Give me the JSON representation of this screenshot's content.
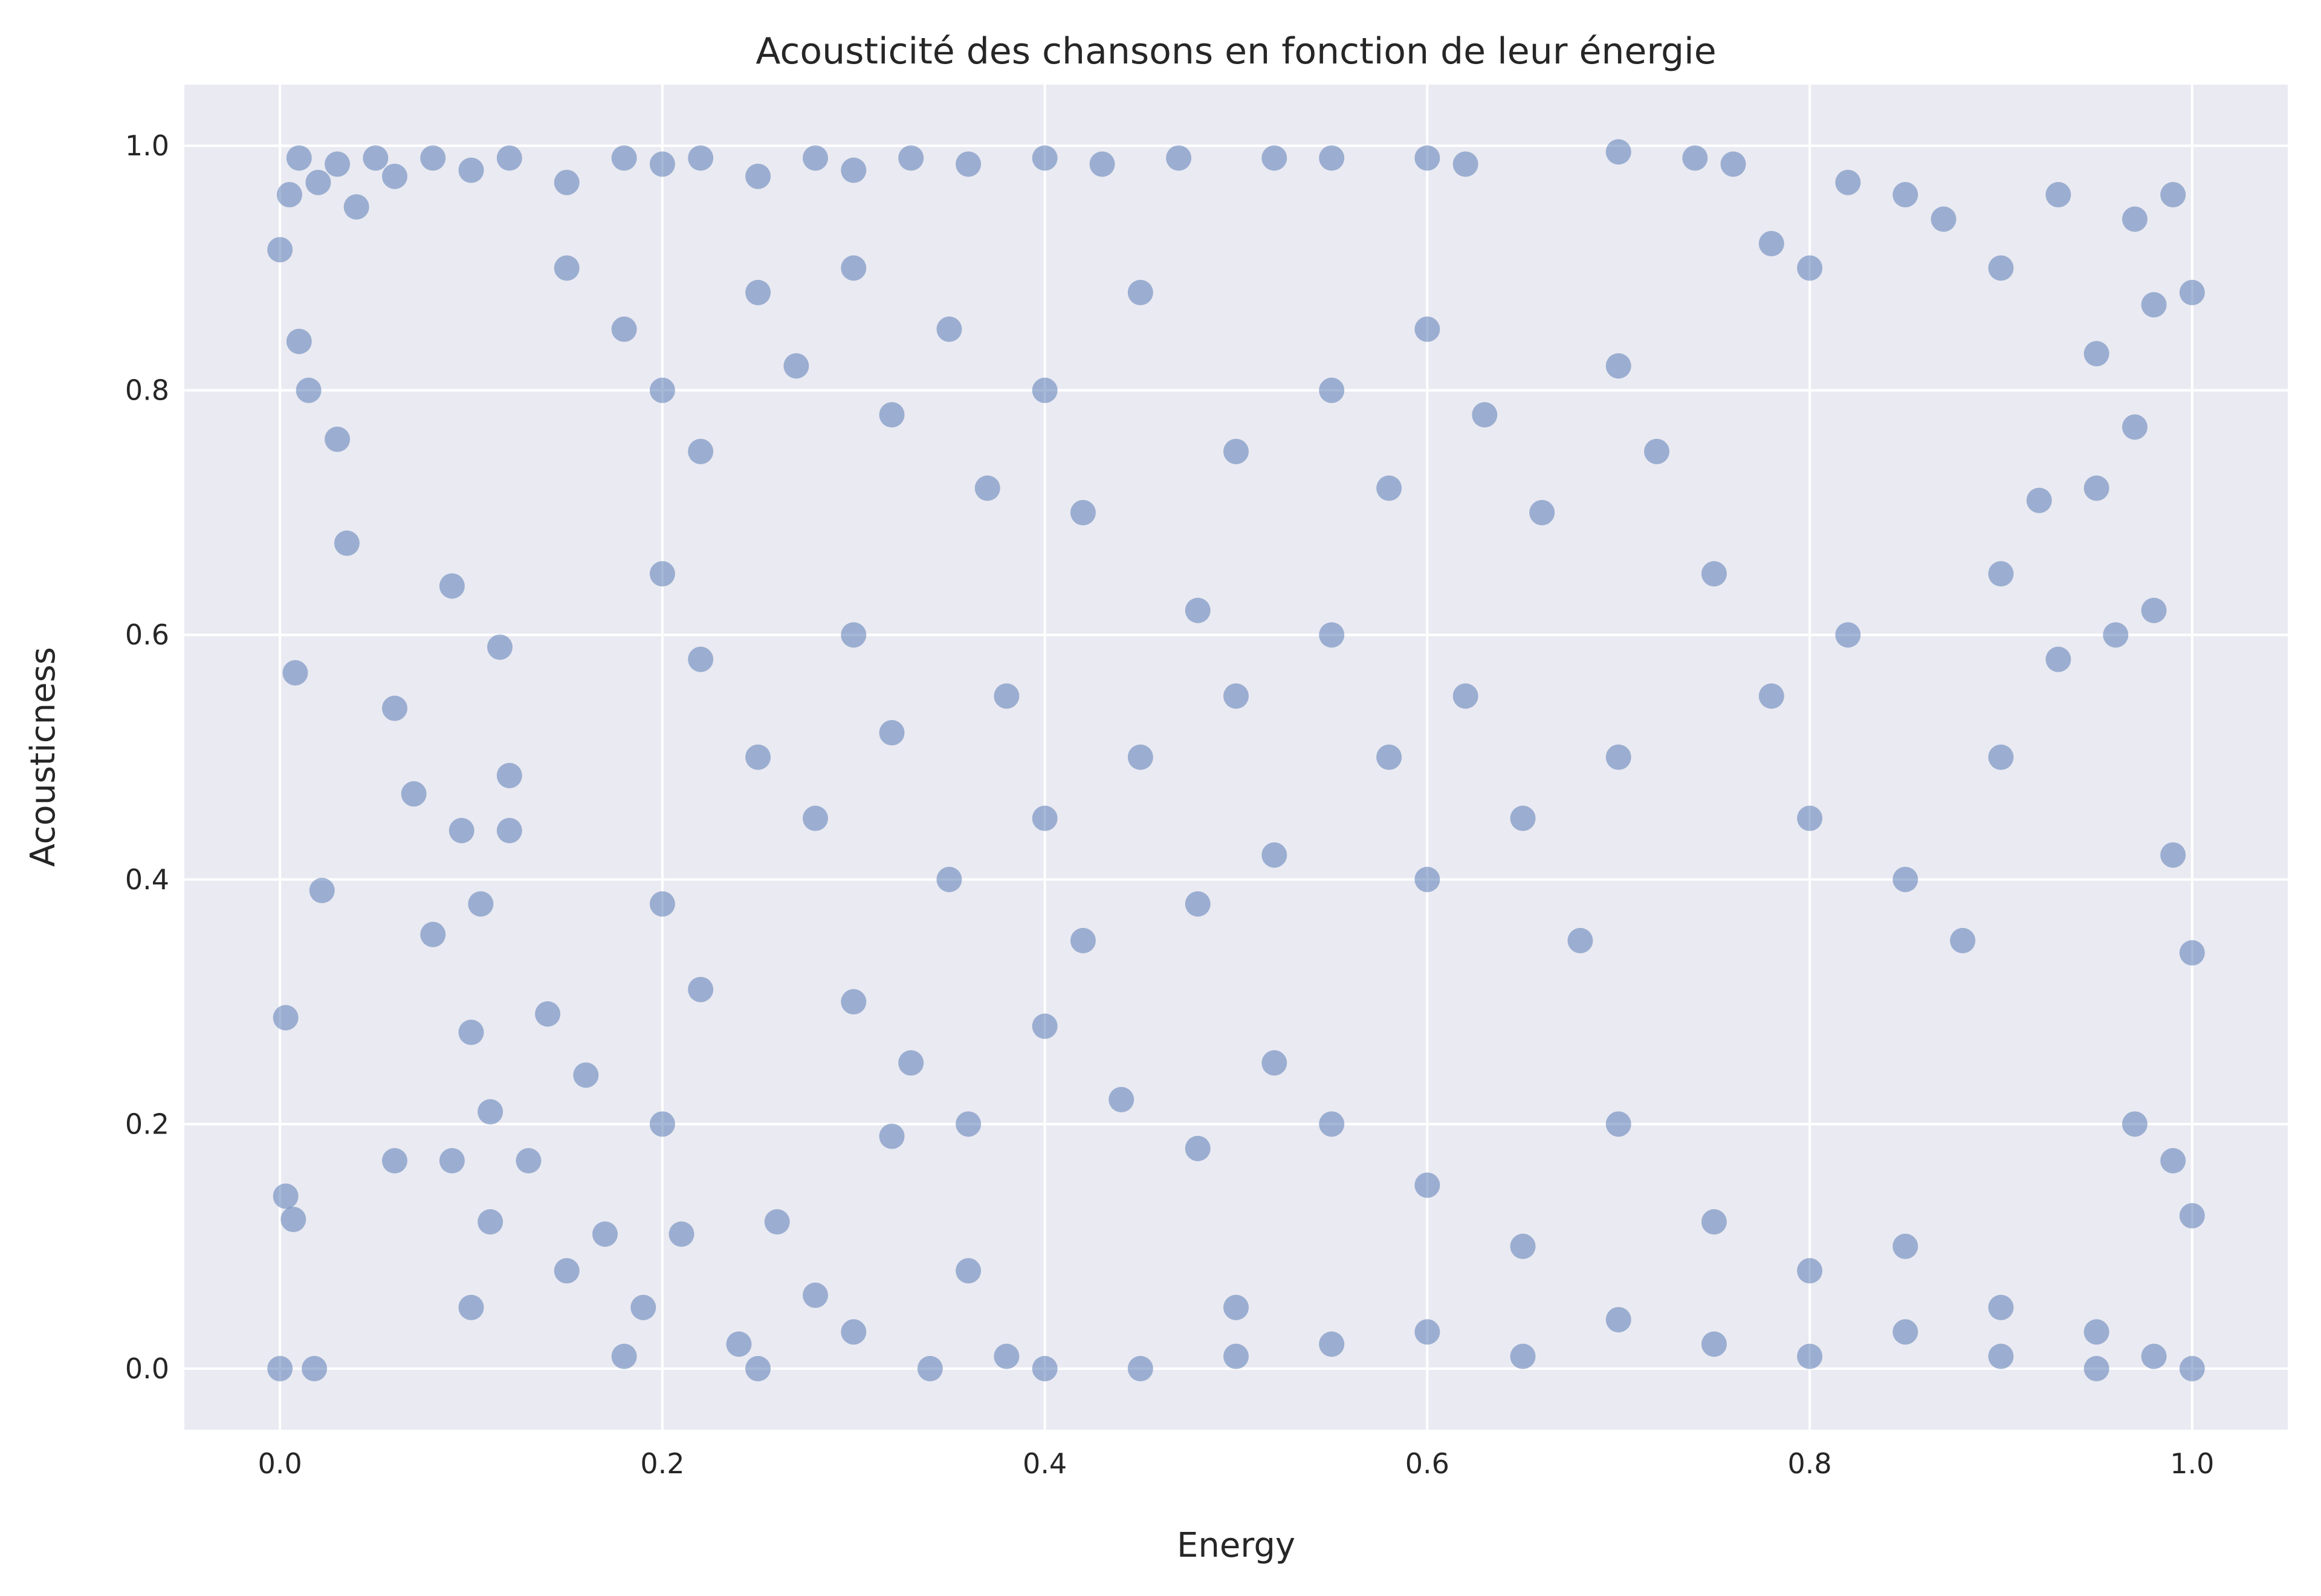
{
  "chart_data": {
    "type": "scatter",
    "title": "Acousticité des chansons en fonction de leur énergie",
    "xlabel": "Energy",
    "ylabel": "Acousticness",
    "xlim": [
      -0.05,
      1.05
    ],
    "ylim": [
      -0.05,
      1.05
    ],
    "xticks": [
      0.0,
      0.2,
      0.4,
      0.6,
      0.8,
      1.0
    ],
    "xtick_labels": [
      "0.0",
      "0.2",
      "0.4",
      "0.6",
      "0.8",
      "1.0"
    ],
    "yticks": [
      0.0,
      0.2,
      0.4,
      0.6,
      0.8,
      1.0
    ],
    "ytick_labels": [
      "0.0",
      "0.2",
      "0.4",
      "0.6",
      "0.8",
      "1.0"
    ],
    "grid": true,
    "background_color": "#eaeaf2",
    "point_color": "#4c72b0",
    "point_opacity": 0.5,
    "series": [
      {
        "points": [
          [
            0.0,
            0.0
          ],
          [
            0.018,
            0.0
          ],
          [
            0.003,
            0.287
          ],
          [
            0.003,
            0.141
          ],
          [
            0.007,
            0.122
          ],
          [
            0.008,
            0.569
          ],
          [
            0.022,
            0.391
          ],
          [
            0.0,
            0.915
          ],
          [
            0.005,
            0.96
          ],
          [
            0.01,
            0.99
          ],
          [
            0.02,
            0.97
          ],
          [
            0.03,
            0.985
          ],
          [
            0.04,
            0.95
          ],
          [
            0.05,
            0.99
          ],
          [
            0.06,
            0.975
          ],
          [
            0.08,
            0.99
          ],
          [
            0.1,
            0.98
          ],
          [
            0.12,
            0.99
          ],
          [
            0.15,
            0.97
          ],
          [
            0.18,
            0.99
          ],
          [
            0.2,
            0.985
          ],
          [
            0.22,
            0.99
          ],
          [
            0.25,
            0.975
          ],
          [
            0.28,
            0.99
          ],
          [
            0.3,
            0.98
          ],
          [
            0.33,
            0.99
          ],
          [
            0.36,
            0.985
          ],
          [
            0.4,
            0.99
          ],
          [
            0.43,
            0.985
          ],
          [
            0.47,
            0.99
          ],
          [
            0.52,
            0.99
          ],
          [
            0.55,
            0.99
          ],
          [
            0.6,
            0.99
          ],
          [
            0.62,
            0.985
          ],
          [
            0.7,
            0.995
          ],
          [
            0.74,
            0.99
          ],
          [
            0.76,
            0.985
          ],
          [
            0.01,
            0.84
          ],
          [
            0.015,
            0.8
          ],
          [
            0.03,
            0.76
          ],
          [
            0.035,
            0.675
          ],
          [
            0.06,
            0.54
          ],
          [
            0.06,
            0.17
          ],
          [
            0.07,
            0.47
          ],
          [
            0.08,
            0.355
          ],
          [
            0.09,
            0.64
          ],
          [
            0.09,
            0.17
          ],
          [
            0.095,
            0.44
          ],
          [
            0.1,
            0.05
          ],
          [
            0.1,
            0.275
          ],
          [
            0.105,
            0.38
          ],
          [
            0.11,
            0.12
          ],
          [
            0.11,
            0.21
          ],
          [
            0.115,
            0.59
          ],
          [
            0.12,
            0.485
          ],
          [
            0.12,
            0.44
          ],
          [
            0.13,
            0.17
          ],
          [
            0.14,
            0.29
          ],
          [
            0.15,
            0.08
          ],
          [
            0.16,
            0.24
          ],
          [
            0.17,
            0.11
          ],
          [
            0.18,
            0.01
          ],
          [
            0.19,
            0.05
          ],
          [
            0.2,
            0.2
          ],
          [
            0.2,
            0.38
          ],
          [
            0.21,
            0.11
          ],
          [
            0.22,
            0.31
          ],
          [
            0.24,
            0.02
          ],
          [
            0.25,
            0.0
          ],
          [
            0.26,
            0.12
          ],
          [
            0.28,
            0.06
          ],
          [
            0.3,
            0.03
          ],
          [
            0.32,
            0.19
          ],
          [
            0.34,
            0.0
          ],
          [
            0.36,
            0.08
          ],
          [
            0.38,
            0.01
          ],
          [
            0.4,
            0.0
          ],
          [
            0.15,
            0.9
          ],
          [
            0.18,
            0.85
          ],
          [
            0.2,
            0.8
          ],
          [
            0.22,
            0.75
          ],
          [
            0.25,
            0.88
          ],
          [
            0.27,
            0.82
          ],
          [
            0.3,
            0.9
          ],
          [
            0.32,
            0.78
          ],
          [
            0.35,
            0.85
          ],
          [
            0.37,
            0.72
          ],
          [
            0.4,
            0.8
          ],
          [
            0.42,
            0.7
          ],
          [
            0.45,
            0.88
          ],
          [
            0.48,
            0.62
          ],
          [
            0.5,
            0.75
          ],
          [
            0.2,
            0.65
          ],
          [
            0.22,
            0.58
          ],
          [
            0.25,
            0.5
          ],
          [
            0.28,
            0.45
          ],
          [
            0.3,
            0.6
          ],
          [
            0.32,
            0.52
          ],
          [
            0.35,
            0.4
          ],
          [
            0.38,
            0.55
          ],
          [
            0.4,
            0.45
          ],
          [
            0.42,
            0.35
          ],
          [
            0.45,
            0.5
          ],
          [
            0.48,
            0.38
          ],
          [
            0.5,
            0.55
          ],
          [
            0.52,
            0.42
          ],
          [
            0.3,
            0.3
          ],
          [
            0.33,
            0.25
          ],
          [
            0.36,
            0.2
          ],
          [
            0.4,
            0.28
          ],
          [
            0.44,
            0.22
          ],
          [
            0.48,
            0.18
          ],
          [
            0.52,
            0.25
          ],
          [
            0.55,
            0.6
          ],
          [
            0.58,
            0.5
          ],
          [
            0.6,
            0.4
          ],
          [
            0.62,
            0.55
          ],
          [
            0.65,
            0.45
          ],
          [
            0.68,
            0.35
          ],
          [
            0.7,
            0.5
          ],
          [
            0.55,
            0.8
          ],
          [
            0.58,
            0.72
          ],
          [
            0.6,
            0.85
          ],
          [
            0.63,
            0.78
          ],
          [
            0.66,
            0.7
          ],
          [
            0.7,
            0.82
          ],
          [
            0.72,
            0.75
          ],
          [
            0.75,
            0.65
          ],
          [
            0.78,
            0.55
          ],
          [
            0.8,
            0.45
          ],
          [
            0.82,
            0.6
          ],
          [
            0.85,
            0.4
          ],
          [
            0.88,
            0.35
          ],
          [
            0.9,
            0.5
          ],
          [
            0.78,
            0.92
          ],
          [
            0.8,
            0.9
          ],
          [
            0.82,
            0.97
          ],
          [
            0.85,
            0.96
          ],
          [
            0.87,
            0.94
          ],
          [
            0.9,
            0.9
          ],
          [
            0.93,
            0.96
          ],
          [
            0.95,
            0.83
          ],
          [
            0.97,
            0.94
          ],
          [
            0.98,
            0.87
          ],
          [
            0.99,
            0.96
          ],
          [
            1.0,
            0.88
          ],
          [
            0.97,
            0.77
          ],
          [
            0.95,
            0.72
          ],
          [
            0.92,
            0.71
          ],
          [
            0.9,
            0.65
          ],
          [
            0.93,
            0.58
          ],
          [
            0.96,
            0.6
          ],
          [
            0.98,
            0.62
          ],
          [
            0.99,
            0.42
          ],
          [
            1.0,
            0.34
          ],
          [
            0.55,
            0.2
          ],
          [
            0.6,
            0.15
          ],
          [
            0.65,
            0.1
          ],
          [
            0.7,
            0.2
          ],
          [
            0.75,
            0.12
          ],
          [
            0.8,
            0.08
          ],
          [
            0.85,
            0.1
          ],
          [
            0.9,
            0.05
          ],
          [
            0.95,
            0.03
          ],
          [
            0.98,
            0.01
          ],
          [
            1.0,
            0.0
          ],
          [
            1.0,
            0.125
          ],
          [
            0.99,
            0.17
          ],
          [
            0.97,
            0.2
          ],
          [
            0.5,
            0.05
          ],
          [
            0.55,
            0.02
          ],
          [
            0.6,
            0.03
          ],
          [
            0.65,
            0.01
          ],
          [
            0.7,
            0.04
          ],
          [
            0.75,
            0.02
          ],
          [
            0.8,
            0.01
          ],
          [
            0.85,
            0.03
          ],
          [
            0.9,
            0.01
          ],
          [
            0.95,
            0.0
          ],
          [
            0.45,
            0.0
          ],
          [
            0.5,
            0.01
          ]
        ]
      }
    ]
  }
}
